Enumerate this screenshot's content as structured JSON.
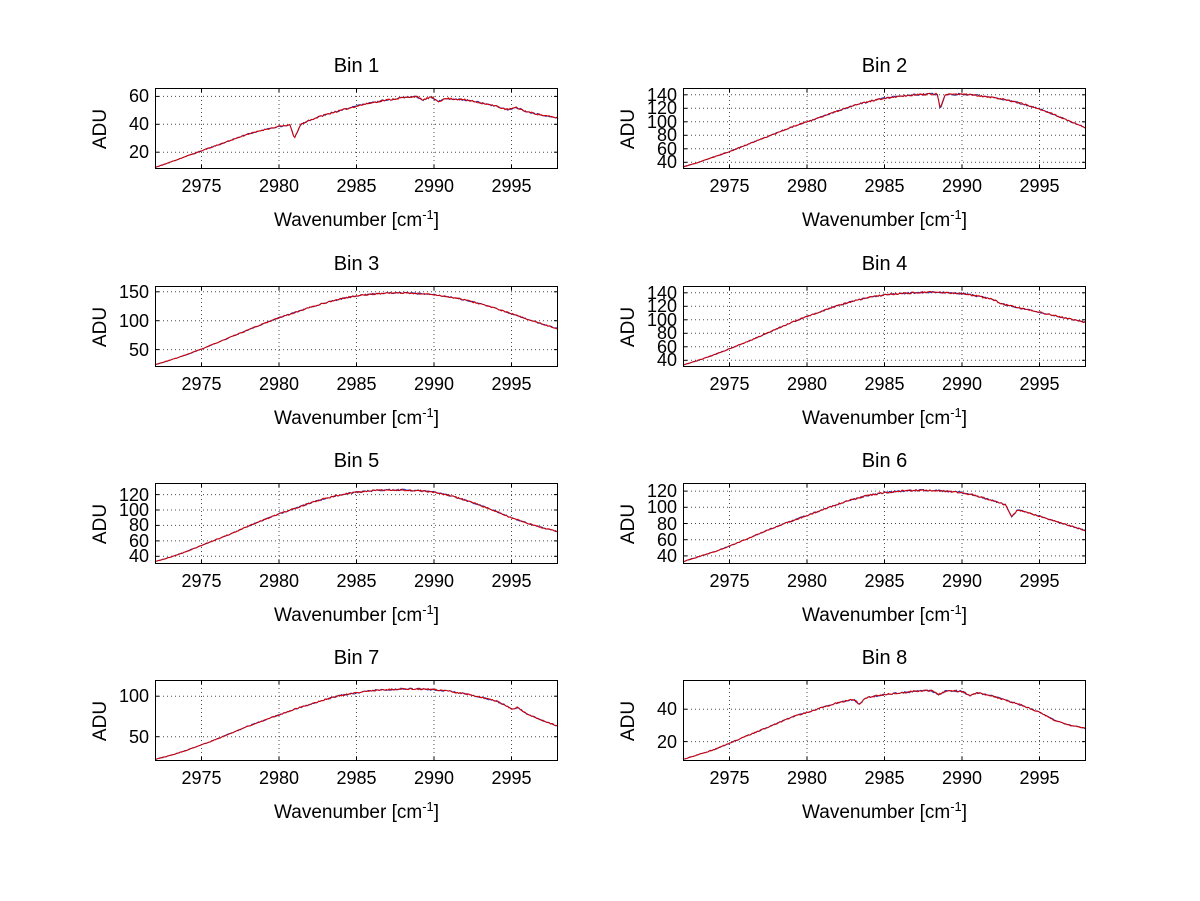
{
  "chart_data": {
    "type": "line",
    "figure_title": "",
    "xlabel": {
      "prefix": "Wavenumber [cm",
      "sup": "-1",
      "suffix": "]"
    },
    "ylabel": "ADU",
    "x": {
      "lim": [
        2972,
        2998
      ],
      "ticks": [
        2975,
        2980,
        2985,
        2990,
        2995
      ]
    },
    "grid": true,
    "legend": "none",
    "series_colors": {
      "red": "#d40000",
      "blue": "#2b29a3"
    },
    "charts": [
      {
        "title": "Bin 1",
        "ylim": [
          8,
          66
        ],
        "yticks": [
          20,
          40,
          60
        ],
        "noise": 0.6,
        "seed": 11,
        "points": [
          [
            2972,
            9
          ],
          [
            2973,
            13
          ],
          [
            2974,
            17
          ],
          [
            2975,
            21
          ],
          [
            2976,
            25
          ],
          [
            2977,
            29
          ],
          [
            2978,
            33
          ],
          [
            2979,
            36
          ],
          [
            2980,
            38.5
          ],
          [
            2980.7,
            39.5
          ],
          [
            2981,
            30
          ],
          [
            2981.4,
            40
          ],
          [
            2982,
            43
          ],
          [
            2983,
            47
          ],
          [
            2984,
            50
          ],
          [
            2985,
            53
          ],
          [
            2986,
            55.5
          ],
          [
            2987,
            57.5
          ],
          [
            2988,
            59
          ],
          [
            2988.8,
            60
          ],
          [
            2989.3,
            57.5
          ],
          [
            2989.8,
            59.5
          ],
          [
            2990.3,
            56.5
          ],
          [
            2990.8,
            58.5
          ],
          [
            2991.5,
            58
          ],
          [
            2992,
            57.5
          ],
          [
            2993,
            55.5
          ],
          [
            2994,
            53
          ],
          [
            2994.7,
            50.5
          ],
          [
            2995.3,
            52
          ],
          [
            2996,
            49
          ],
          [
            2997,
            46.5
          ],
          [
            2998,
            44.5
          ]
        ]
      },
      {
        "title": "Bin 2",
        "ylim": [
          30,
          150
        ],
        "yticks": [
          40,
          60,
          80,
          100,
          120,
          140
        ],
        "noise": 1.2,
        "seed": 22,
        "points": [
          [
            2972,
            33
          ],
          [
            2973,
            40
          ],
          [
            2974,
            48
          ],
          [
            2975,
            56
          ],
          [
            2976,
            65
          ],
          [
            2977,
            74
          ],
          [
            2978,
            83
          ],
          [
            2979,
            92
          ],
          [
            2980,
            100
          ],
          [
            2981,
            108
          ],
          [
            2982,
            116
          ],
          [
            2983,
            124
          ],
          [
            2984,
            130
          ],
          [
            2985,
            135
          ],
          [
            2986,
            138
          ],
          [
            2987,
            140
          ],
          [
            2988,
            141
          ],
          [
            2988.4,
            141
          ],
          [
            2988.6,
            119
          ],
          [
            2988.9,
            140
          ],
          [
            2990,
            141
          ],
          [
            2991,
            139
          ],
          [
            2992,
            136
          ],
          [
            2993,
            132
          ],
          [
            2994,
            126
          ],
          [
            2995,
            119
          ],
          [
            2996,
            110
          ],
          [
            2997,
            100
          ],
          [
            2998,
            91
          ]
        ]
      },
      {
        "title": "Bin 3",
        "ylim": [
          20,
          160
        ],
        "yticks": [
          50,
          100,
          150
        ],
        "noise": 1.2,
        "seed": 33,
        "points": [
          [
            2972,
            24
          ],
          [
            2973,
            32
          ],
          [
            2974,
            41
          ],
          [
            2975,
            51
          ],
          [
            2976,
            62
          ],
          [
            2977,
            73
          ],
          [
            2978,
            84
          ],
          [
            2979,
            95
          ],
          [
            2980,
            105
          ],
          [
            2981,
            114
          ],
          [
            2982,
            123
          ],
          [
            2983,
            131
          ],
          [
            2984,
            138
          ],
          [
            2985,
            143
          ],
          [
            2986,
            146
          ],
          [
            2987,
            148
          ],
          [
            2988,
            148
          ],
          [
            2989,
            147
          ],
          [
            2990,
            145
          ],
          [
            2991,
            141
          ],
          [
            2992,
            136
          ],
          [
            2993,
            129
          ],
          [
            2994,
            121
          ],
          [
            2995,
            112
          ],
          [
            2996,
            103
          ],
          [
            2997,
            94
          ],
          [
            2998,
            86
          ]
        ]
      },
      {
        "title": "Bin 4",
        "ylim": [
          30,
          150
        ],
        "yticks": [
          40,
          60,
          80,
          100,
          120,
          140
        ],
        "noise": 1.2,
        "seed": 44,
        "points": [
          [
            2972,
            33
          ],
          [
            2973,
            40
          ],
          [
            2974,
            48
          ],
          [
            2975,
            57
          ],
          [
            2976,
            66
          ],
          [
            2977,
            76
          ],
          [
            2978,
            86
          ],
          [
            2979,
            96
          ],
          [
            2980,
            105
          ],
          [
            2981,
            113
          ],
          [
            2982,
            121
          ],
          [
            2983,
            128
          ],
          [
            2984,
            133
          ],
          [
            2985,
            137
          ],
          [
            2986,
            139
          ],
          [
            2987,
            140
          ],
          [
            2988,
            141
          ],
          [
            2989,
            140
          ],
          [
            2990,
            139
          ],
          [
            2991,
            135
          ],
          [
            2992,
            130
          ],
          [
            2992.5,
            124
          ],
          [
            2993,
            121
          ],
          [
            2994,
            116
          ],
          [
            2995,
            111
          ],
          [
            2996,
            106
          ],
          [
            2997,
            101
          ],
          [
            2998,
            96
          ]
        ]
      },
      {
        "title": "Bin 5",
        "ylim": [
          30,
          135
        ],
        "yticks": [
          40,
          60,
          80,
          100,
          120
        ],
        "noise": 1.0,
        "seed": 55,
        "points": [
          [
            2972,
            33
          ],
          [
            2973,
            39
          ],
          [
            2974,
            46
          ],
          [
            2975,
            54
          ],
          [
            2976,
            62
          ],
          [
            2977,
            70
          ],
          [
            2978,
            79
          ],
          [
            2979,
            87
          ],
          [
            2980,
            95
          ],
          [
            2981,
            102
          ],
          [
            2982,
            109
          ],
          [
            2983,
            115
          ],
          [
            2984,
            120
          ],
          [
            2985,
            123
          ],
          [
            2986,
            125
          ],
          [
            2987,
            126
          ],
          [
            2988,
            126
          ],
          [
            2989,
            125
          ],
          [
            2990,
            123
          ],
          [
            2991,
            119
          ],
          [
            2992,
            113
          ],
          [
            2993,
            106
          ],
          [
            2994,
            98
          ],
          [
            2995,
            90
          ],
          [
            2996,
            83
          ],
          [
            2997,
            77
          ],
          [
            2998,
            72
          ]
        ]
      },
      {
        "title": "Bin 6",
        "ylim": [
          30,
          130
        ],
        "yticks": [
          40,
          60,
          80,
          100,
          120
        ],
        "noise": 1.0,
        "seed": 66,
        "points": [
          [
            2972,
            33
          ],
          [
            2973,
            39
          ],
          [
            2974,
            45
          ],
          [
            2975,
            52
          ],
          [
            2976,
            60
          ],
          [
            2977,
            68
          ],
          [
            2978,
            76
          ],
          [
            2979,
            83
          ],
          [
            2980,
            90
          ],
          [
            2981,
            97
          ],
          [
            2982,
            104
          ],
          [
            2983,
            110
          ],
          [
            2984,
            115
          ],
          [
            2985,
            118
          ],
          [
            2986,
            120
          ],
          [
            2987,
            121
          ],
          [
            2988,
            121
          ],
          [
            2989,
            120
          ],
          [
            2990,
            118
          ],
          [
            2991,
            114
          ],
          [
            2992,
            108
          ],
          [
            2992.8,
            103
          ],
          [
            2993.2,
            88
          ],
          [
            2993.6,
            97
          ],
          [
            2994,
            95
          ],
          [
            2995,
            89
          ],
          [
            2996,
            83
          ],
          [
            2997,
            77
          ],
          [
            2998,
            71
          ]
        ]
      },
      {
        "title": "Bin 7",
        "ylim": [
          20,
          120
        ],
        "yticks": [
          50,
          100
        ],
        "noise": 0.9,
        "seed": 77,
        "points": [
          [
            2972,
            22
          ],
          [
            2973,
            27
          ],
          [
            2974,
            33
          ],
          [
            2975,
            40
          ],
          [
            2976,
            47
          ],
          [
            2977,
            55
          ],
          [
            2978,
            63
          ],
          [
            2979,
            70
          ],
          [
            2980,
            77
          ],
          [
            2981,
            84
          ],
          [
            2982,
            90
          ],
          [
            2983,
            96
          ],
          [
            2984,
            101
          ],
          [
            2985,
            104
          ],
          [
            2986,
            107
          ],
          [
            2987,
            108
          ],
          [
            2988,
            109
          ],
          [
            2989,
            109
          ],
          [
            2990,
            108
          ],
          [
            2991,
            106
          ],
          [
            2992,
            103
          ],
          [
            2993,
            99
          ],
          [
            2994,
            94
          ],
          [
            2994.6,
            89
          ],
          [
            2995,
            84
          ],
          [
            2995.4,
            86
          ],
          [
            2996,
            78
          ],
          [
            2997,
            70
          ],
          [
            2998,
            63
          ]
        ]
      },
      {
        "title": "Bin 8",
        "ylim": [
          8,
          58
        ],
        "yticks": [
          20,
          40
        ],
        "noise": 0.5,
        "seed": 88,
        "points": [
          [
            2972,
            9
          ],
          [
            2973,
            12
          ],
          [
            2974,
            15
          ],
          [
            2975,
            19
          ],
          [
            2976,
            23
          ],
          [
            2977,
            27
          ],
          [
            2978,
            31
          ],
          [
            2979,
            35
          ],
          [
            2980,
            38
          ],
          [
            2981,
            41
          ],
          [
            2982,
            44
          ],
          [
            2983,
            46
          ],
          [
            2983.4,
            43
          ],
          [
            2983.8,
            47
          ],
          [
            2985,
            49
          ],
          [
            2986,
            50
          ],
          [
            2987,
            51
          ],
          [
            2988,
            51.5
          ],
          [
            2988.5,
            49
          ],
          [
            2989,
            51.5
          ],
          [
            2990,
            51
          ],
          [
            2990.5,
            48.5
          ],
          [
            2991,
            50
          ],
          [
            2992,
            48
          ],
          [
            2993,
            45
          ],
          [
            2994,
            42
          ],
          [
            2995,
            38
          ],
          [
            2996,
            33
          ],
          [
            2997,
            30
          ],
          [
            2998,
            28
          ]
        ]
      }
    ]
  }
}
